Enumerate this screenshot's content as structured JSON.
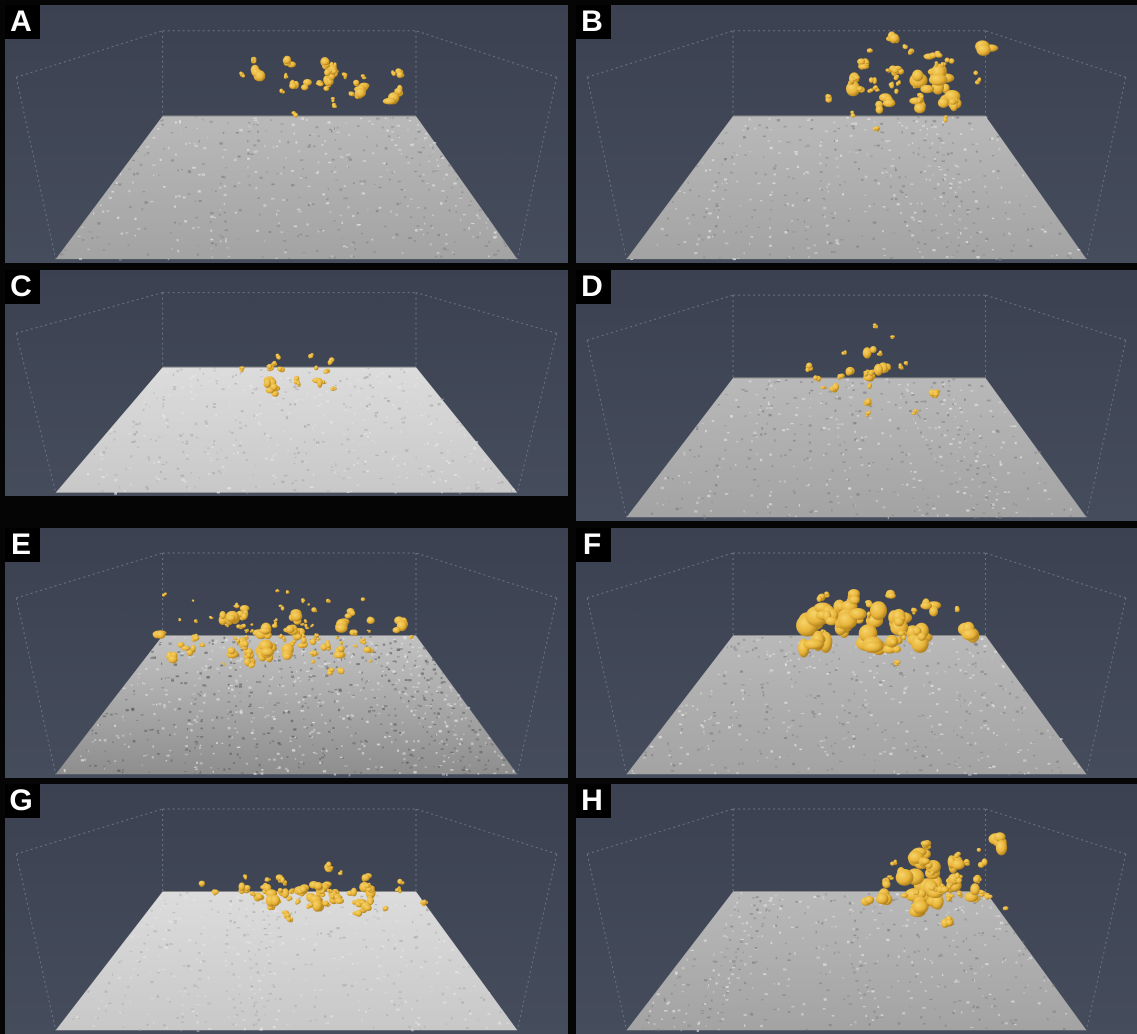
{
  "figure": {
    "panels": [
      {
        "label": "A",
        "density": "sparse-right",
        "surface": "mid",
        "seed": 11
      },
      {
        "label": "B",
        "density": "cluster-top",
        "surface": "mid",
        "seed": 23
      },
      {
        "label": "C",
        "density": "few-center",
        "surface": "light",
        "seed": 37
      },
      {
        "label": "D",
        "density": "column-center",
        "surface": "mid",
        "seed": 41
      },
      {
        "label": "E",
        "density": "dense-spread",
        "surface": "dark-grain",
        "seed": 53
      },
      {
        "label": "F",
        "density": "cluster-large",
        "surface": "mid",
        "seed": 67
      },
      {
        "label": "G",
        "density": "band-center",
        "surface": "light",
        "seed": 71
      },
      {
        "label": "H",
        "density": "cluster-right",
        "surface": "mid",
        "seed": 83
      }
    ],
    "colors": {
      "background": "#454c5c",
      "background_top": "#3b4150",
      "particle": "#e8b43a",
      "particle_shadow": "#a87a1a",
      "box_line": "#6c7384"
    }
  }
}
